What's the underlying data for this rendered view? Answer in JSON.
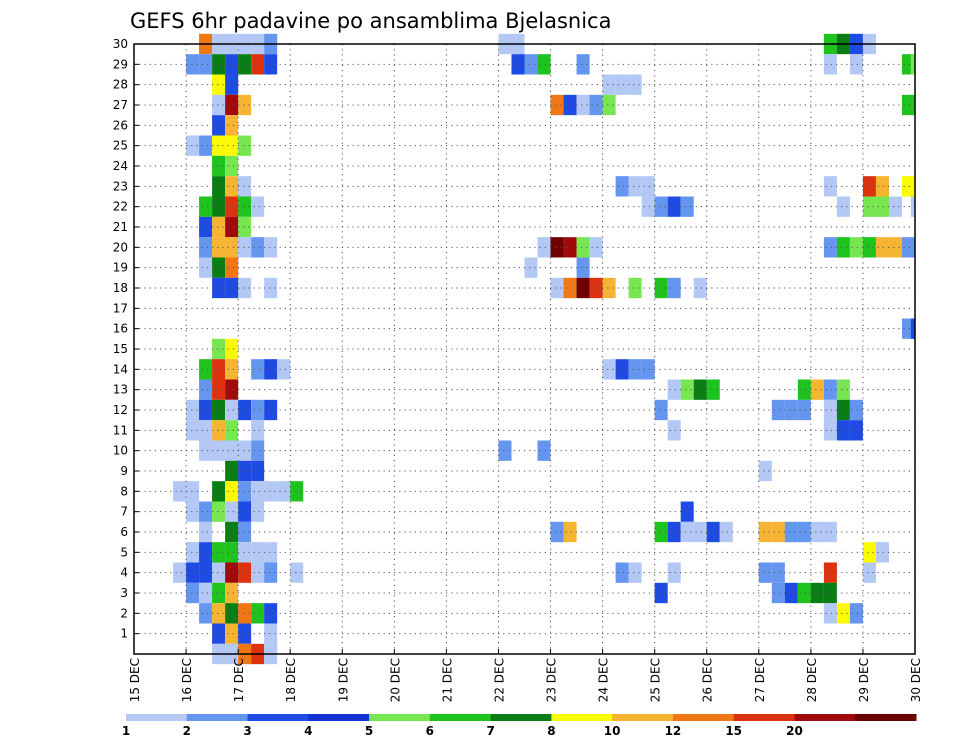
{
  "chart_data": {
    "type": "heatmap",
    "title": "GEFS 6hr padavine po ansamblima Bjelasnica",
    "xlabel": "",
    "ylabel": "",
    "x_tick_labels": [
      "15 DEC",
      "16 DEC",
      "17 DEC",
      "18 DEC",
      "19 DEC",
      "20 DEC",
      "21 DEC",
      "22 DEC",
      "23 DEC",
      "24 DEC",
      "25 DEC",
      "26 DEC",
      "27 DEC",
      "28 DEC",
      "29 DEC",
      "30 DEC"
    ],
    "y_tick_labels": [
      "1",
      "2",
      "3",
      "4",
      "5",
      "6",
      "7",
      "8",
      "9",
      "10",
      "11",
      "12",
      "13",
      "14",
      "15",
      "16",
      "17",
      "18",
      "19",
      "20",
      "21",
      "22",
      "23",
      "24",
      "25",
      "26",
      "27",
      "28",
      "29",
      "30"
    ],
    "x_range_days": [
      0,
      15
    ],
    "y_range": [
      0,
      30
    ],
    "grid": true,
    "time_step_hours": 6,
    "colorbar": {
      "labels": [
        "1",
        "2",
        "3",
        "4",
        "5",
        "6",
        "7",
        "8",
        "10",
        "12",
        "15",
        "20"
      ],
      "colors": [
        "#b4c8f5",
        "#6496f0",
        "#1e4be1",
        "#1432d2",
        "#78e650",
        "#1ec31e",
        "#0a7d14",
        "#fafa00",
        "#f5b432",
        "#f07814",
        "#dc320f",
        "#a00a0a",
        "#6e0000"
      ]
    },
    "color_index_legend": "cell value = index into colorbar.colors (0=1-2, 1=2-3, 2=3-4, 3=4-5 dark, 4=5-6, 5=6-7, 6=7-8, 7=8-10, 8=10-12, 9=12-15, 10=15-20 red, 11=20+ dark red, 12=maroon)",
    "series": [
      {
        "member": 30,
        "cells": [
          [
            1.25,
            9
          ],
          [
            1.5,
            0
          ],
          [
            1.75,
            0
          ],
          [
            2.0,
            0
          ],
          [
            2.25,
            0
          ],
          [
            2.5,
            1
          ],
          [
            7.0,
            0
          ],
          [
            7.25,
            0
          ],
          [
            13.25,
            5
          ],
          [
            13.5,
            6
          ],
          [
            13.75,
            2
          ],
          [
            14.0,
            0
          ]
        ]
      },
      {
        "member": 29,
        "cells": [
          [
            1.0,
            1
          ],
          [
            1.25,
            1
          ],
          [
            1.5,
            6
          ],
          [
            1.75,
            2
          ],
          [
            2.0,
            6
          ],
          [
            2.25,
            10
          ],
          [
            2.5,
            2
          ],
          [
            7.25,
            2
          ],
          [
            7.5,
            1
          ],
          [
            7.75,
            5
          ],
          [
            8.5,
            1
          ],
          [
            13.25,
            0
          ],
          [
            13.75,
            0
          ],
          [
            14.75,
            5
          ],
          [
            14.92,
            4
          ]
        ]
      },
      {
        "member": 28,
        "cells": [
          [
            1.5,
            7
          ],
          [
            1.75,
            2
          ],
          [
            9.0,
            0
          ],
          [
            9.25,
            0
          ],
          [
            9.5,
            0
          ]
        ]
      },
      {
        "member": 27,
        "cells": [
          [
            1.5,
            0
          ],
          [
            1.75,
            11
          ],
          [
            2.0,
            8
          ],
          [
            8.0,
            9
          ],
          [
            8.25,
            2
          ],
          [
            8.5,
            0
          ],
          [
            8.75,
            1
          ],
          [
            9.0,
            4
          ],
          [
            14.75,
            5
          ]
        ]
      },
      {
        "member": 26,
        "cells": [
          [
            1.5,
            2
          ],
          [
            1.75,
            8
          ]
        ]
      },
      {
        "member": 25,
        "cells": [
          [
            1.0,
            0
          ],
          [
            1.25,
            1
          ],
          [
            1.5,
            7
          ],
          [
            1.75,
            7
          ],
          [
            2.0,
            4
          ]
        ]
      },
      {
        "member": 24,
        "cells": [
          [
            1.5,
            5
          ],
          [
            1.75,
            4
          ]
        ]
      },
      {
        "member": 23,
        "cells": [
          [
            1.5,
            6
          ],
          [
            1.75,
            8
          ],
          [
            2.0,
            0
          ],
          [
            9.25,
            1
          ],
          [
            9.5,
            0
          ],
          [
            9.75,
            0
          ],
          [
            13.25,
            0
          ],
          [
            14.0,
            10
          ],
          [
            14.25,
            8
          ],
          [
            14.75,
            7
          ]
        ]
      },
      {
        "member": 22,
        "cells": [
          [
            1.25,
            5
          ],
          [
            1.5,
            6
          ],
          [
            1.75,
            10
          ],
          [
            2.0,
            5
          ],
          [
            2.25,
            0
          ],
          [
            9.75,
            0
          ],
          [
            10.0,
            1
          ],
          [
            10.25,
            2
          ],
          [
            10.5,
            1
          ],
          [
            13.5,
            0
          ],
          [
            14.0,
            4
          ],
          [
            14.25,
            4
          ],
          [
            14.5,
            0
          ],
          [
            14.92,
            0
          ]
        ]
      },
      {
        "member": 21,
        "cells": [
          [
            1.25,
            2
          ],
          [
            1.5,
            8
          ],
          [
            1.75,
            11
          ],
          [
            2.0,
            4
          ]
        ]
      },
      {
        "member": 20,
        "cells": [
          [
            1.25,
            1
          ],
          [
            1.5,
            8
          ],
          [
            1.75,
            8
          ],
          [
            2.0,
            0
          ],
          [
            2.25,
            1
          ],
          [
            2.5,
            0
          ],
          [
            7.75,
            0
          ],
          [
            8.0,
            12
          ],
          [
            8.25,
            11
          ],
          [
            8.5,
            4
          ],
          [
            8.75,
            0
          ],
          [
            13.25,
            1
          ],
          [
            13.5,
            5
          ],
          [
            13.75,
            4
          ],
          [
            14.0,
            5
          ],
          [
            14.25,
            8
          ],
          [
            14.5,
            8
          ],
          [
            14.75,
            1
          ]
        ]
      },
      {
        "member": 19,
        "cells": [
          [
            1.25,
            0
          ],
          [
            1.5,
            6
          ],
          [
            1.75,
            9
          ],
          [
            7.5,
            0
          ],
          [
            8.5,
            1
          ]
        ]
      },
      {
        "member": 18,
        "cells": [
          [
            1.5,
            2
          ],
          [
            1.75,
            2
          ],
          [
            2.0,
            0
          ],
          [
            2.5,
            0
          ],
          [
            8.0,
            0
          ],
          [
            8.25,
            9
          ],
          [
            8.5,
            12
          ],
          [
            8.75,
            10
          ],
          [
            9.0,
            8
          ],
          [
            9.5,
            4
          ],
          [
            10.0,
            5
          ],
          [
            10.25,
            1
          ],
          [
            10.75,
            0
          ]
        ]
      },
      {
        "member": 17,
        "cells": []
      },
      {
        "member": 16,
        "cells": [
          [
            14.75,
            1
          ],
          [
            14.92,
            2
          ]
        ]
      },
      {
        "member": 15,
        "cells": [
          [
            1.5,
            4
          ],
          [
            1.75,
            7
          ]
        ]
      },
      {
        "member": 14,
        "cells": [
          [
            1.25,
            5
          ],
          [
            1.5,
            10
          ],
          [
            1.75,
            8
          ],
          [
            2.25,
            1
          ],
          [
            2.5,
            2
          ],
          [
            2.75,
            0
          ],
          [
            9.0,
            0
          ],
          [
            9.25,
            2
          ],
          [
            9.5,
            1
          ],
          [
            9.75,
            1
          ]
        ]
      },
      {
        "member": 13,
        "cells": [
          [
            1.25,
            1
          ],
          [
            1.5,
            10
          ],
          [
            1.75,
            11
          ],
          [
            10.25,
            0
          ],
          [
            10.5,
            4
          ],
          [
            10.75,
            6
          ],
          [
            11.0,
            5
          ],
          [
            12.75,
            5
          ],
          [
            13.0,
            8
          ],
          [
            13.25,
            1
          ],
          [
            13.5,
            4
          ]
        ]
      },
      {
        "member": 12,
        "cells": [
          [
            1.0,
            0
          ],
          [
            1.25,
            2
          ],
          [
            1.5,
            6
          ],
          [
            1.75,
            0
          ],
          [
            2.0,
            2
          ],
          [
            2.25,
            1
          ],
          [
            2.5,
            2
          ],
          [
            10.0,
            1
          ],
          [
            12.25,
            1
          ],
          [
            12.5,
            1
          ],
          [
            12.75,
            1
          ],
          [
            13.25,
            0
          ],
          [
            13.5,
            6
          ],
          [
            13.75,
            1
          ]
        ]
      },
      {
        "member": 11,
        "cells": [
          [
            1.0,
            0
          ],
          [
            1.25,
            0
          ],
          [
            1.5,
            8
          ],
          [
            1.75,
            4
          ],
          [
            2.25,
            0
          ],
          [
            10.25,
            0
          ],
          [
            13.25,
            0
          ],
          [
            13.5,
            2
          ],
          [
            13.75,
            2
          ]
        ]
      },
      {
        "member": 10,
        "cells": [
          [
            1.25,
            0
          ],
          [
            1.5,
            0
          ],
          [
            1.75,
            0
          ],
          [
            2.0,
            0
          ],
          [
            2.25,
            1
          ],
          [
            7.0,
            1
          ],
          [
            7.75,
            1
          ]
        ]
      },
      {
        "member": 9,
        "cells": [
          [
            1.75,
            6
          ],
          [
            2.0,
            2
          ],
          [
            2.25,
            2
          ],
          [
            12.0,
            0
          ]
        ]
      },
      {
        "member": 8,
        "cells": [
          [
            0.75,
            0
          ],
          [
            1.0,
            0
          ],
          [
            1.5,
            6
          ],
          [
            1.75,
            7
          ],
          [
            2.0,
            1
          ],
          [
            2.25,
            0
          ],
          [
            2.5,
            0
          ],
          [
            2.75,
            0
          ],
          [
            3.0,
            5
          ]
        ]
      },
      {
        "member": 7,
        "cells": [
          [
            1.0,
            0
          ],
          [
            1.25,
            1
          ],
          [
            1.5,
            4
          ],
          [
            1.75,
            0
          ],
          [
            2.0,
            2
          ],
          [
            2.25,
            0
          ],
          [
            10.5,
            2
          ]
        ]
      },
      {
        "member": 6,
        "cells": [
          [
            1.25,
            0
          ],
          [
            1.75,
            6
          ],
          [
            2.0,
            1
          ],
          [
            8.0,
            1
          ],
          [
            8.25,
            8
          ],
          [
            10.0,
            5
          ],
          [
            10.25,
            2
          ],
          [
            10.5,
            0
          ],
          [
            10.75,
            0
          ],
          [
            11.0,
            2
          ],
          [
            11.25,
            0
          ],
          [
            12.0,
            8
          ],
          [
            12.25,
            8
          ],
          [
            12.5,
            1
          ],
          [
            12.75,
            1
          ],
          [
            13.0,
            0
          ],
          [
            13.25,
            0
          ]
        ]
      },
      {
        "member": 5,
        "cells": [
          [
            1.0,
            0
          ],
          [
            1.25,
            2
          ],
          [
            1.5,
            5
          ],
          [
            1.75,
            5
          ],
          [
            2.0,
            0
          ],
          [
            2.25,
            0
          ],
          [
            2.5,
            0
          ],
          [
            14.0,
            7
          ],
          [
            14.25,
            0
          ]
        ]
      },
      {
        "member": 4,
        "cells": [
          [
            0.75,
            0
          ],
          [
            1.0,
            2
          ],
          [
            1.25,
            2
          ],
          [
            1.5,
            0
          ],
          [
            1.75,
            11
          ],
          [
            2.0,
            10
          ],
          [
            2.25,
            0
          ],
          [
            2.5,
            1
          ],
          [
            3.0,
            0
          ],
          [
            9.25,
            1
          ],
          [
            9.5,
            0
          ],
          [
            10.25,
            0
          ],
          [
            12.0,
            1
          ],
          [
            12.25,
            1
          ],
          [
            13.25,
            10
          ],
          [
            14.0,
            0
          ]
        ]
      },
      {
        "member": 3,
        "cells": [
          [
            1.0,
            1
          ],
          [
            1.25,
            0
          ],
          [
            1.5,
            5
          ],
          [
            1.75,
            8
          ],
          [
            10.0,
            2
          ],
          [
            12.25,
            1
          ],
          [
            12.5,
            2
          ],
          [
            12.75,
            5
          ],
          [
            13.0,
            6
          ],
          [
            13.25,
            6
          ]
        ]
      },
      {
        "member": 2,
        "cells": [
          [
            1.25,
            1
          ],
          [
            1.5,
            8
          ],
          [
            1.75,
            6
          ],
          [
            2.0,
            9
          ],
          [
            2.25,
            5
          ],
          [
            2.5,
            2
          ],
          [
            13.25,
            0
          ],
          [
            13.5,
            7
          ],
          [
            13.75,
            1
          ]
        ]
      },
      {
        "member": 1,
        "cells": [
          [
            1.5,
            2
          ],
          [
            1.75,
            8
          ],
          [
            2.0,
            2
          ],
          [
            2.5,
            0
          ]
        ]
      },
      {
        "member": 0,
        "cells": [
          [
            1.5,
            0
          ],
          [
            1.75,
            0
          ],
          [
            2.0,
            9
          ],
          [
            2.25,
            10
          ],
          [
            2.5,
            0
          ]
        ]
      }
    ]
  }
}
